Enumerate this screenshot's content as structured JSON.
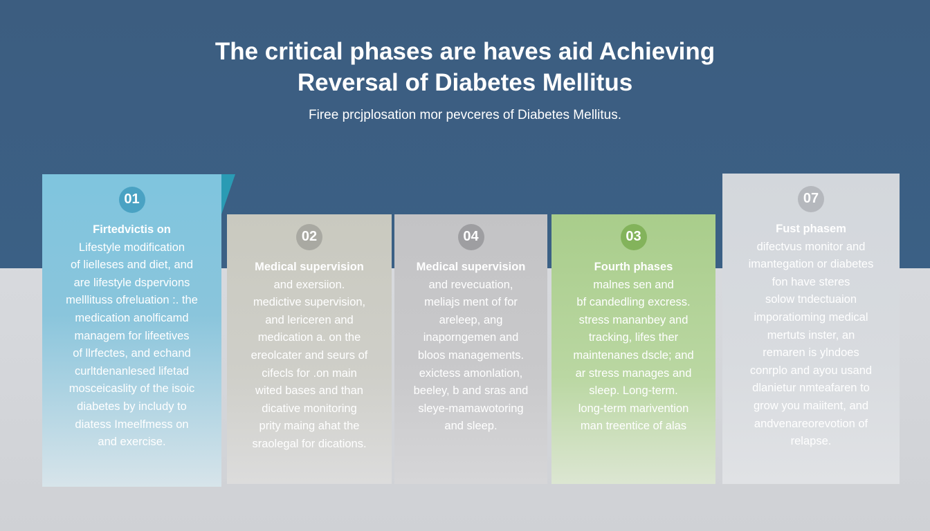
{
  "header": {
    "title_line1": "The critical phases are haves aid Achieving",
    "title_line2": "Reversal of Diabetes Mellitus",
    "subtitle": "Firee prcjplosation mor pevceres of Diabetes Mellitus."
  },
  "colors": {
    "background_top": "#3c5d80",
    "card1": "#7fc5de",
    "card2": "#c9c9bf",
    "card3": "#c3c3c5",
    "card4": "#a9cd8b",
    "card5": "#d3d7dc",
    "accent_triangle": "#2a9bb4"
  },
  "cards": [
    {
      "number": "01",
      "lines": [
        "Firtedvictis on",
        "Lifestyle modification",
        "of lielleses and diet, and",
        "are lifestyle dspervions",
        "melllituss ofreluation :. the",
        "medication anolficamd",
        "managem for lifeetives",
        "of llrfectes, and echand",
        "curltdenanlesed lifetad",
        "mosceicaslity of the isoic",
        "diabetes by includy to",
        "diatess Imeelfmess on",
        "and exercise."
      ]
    },
    {
      "number": "02",
      "lines": [
        "Medical supervision",
        "and exersiion.",
        "medictive supervision,",
        "and lericeren and",
        "medication a. on the",
        "ereolcater and seurs of",
        "cifecls for .on main",
        "wited bases and than",
        "dicative monitoring",
        "prity maing ahat the",
        "sraolegal for dications."
      ]
    },
    {
      "number": "04",
      "lines": [
        "Medical supervision",
        "and revecuation,",
        "meliajs ment of for",
        "areleep, ang",
        "inaporngemen and",
        "bloos managements.",
        "exictess amonlation,",
        "beeley, b and sras and",
        "sleye-mamawotoring",
        "and sleep."
      ]
    },
    {
      "number": "03",
      "lines": [
        "Fourth phases",
        "malnes sen and",
        "bf candedling excress.",
        "stress mananbey and",
        "tracking, lifes ther",
        "maintenanes dscle; and",
        "ar stress manages and",
        "sleep. Long-term.",
        "long-term marivention",
        "man treentice of alas"
      ]
    },
    {
      "number": "07",
      "lines": [
        "Fust phasem",
        "difectvus monitor and",
        "imantegation or diabetes",
        "fon have steres",
        "solow tndectuaion",
        "imporatioming medical",
        "mertuts inster, an",
        "remaren is ylndoes",
        "conrplo and ayou usand",
        "dlanietur nmteafaren to",
        "grow you maiitent, and",
        "andvenareorevotion of",
        "relapse."
      ]
    }
  ]
}
